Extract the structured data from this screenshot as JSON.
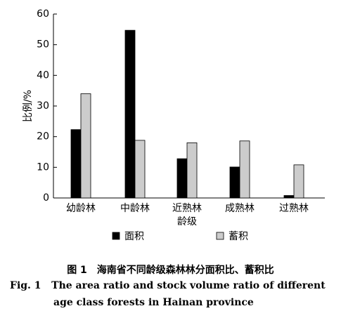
{
  "chart_data": {
    "type": "bar",
    "categories": [
      "幼龄林",
      "中龄林",
      "近熟林",
      "成熟林",
      "过熟林"
    ],
    "series": [
      {
        "name": "面积",
        "color": "#000000",
        "values": [
          22.3,
          54.7,
          12.8,
          10.1,
          0.8
        ]
      },
      {
        "name": "蓄积",
        "color": "#cccccc",
        "values": [
          34,
          18.8,
          18,
          18.6,
          10.8
        ]
      }
    ],
    "x_label": "龄级",
    "y_label": "比例/%",
    "ylim": [
      0,
      60
    ],
    "yticks": [
      0,
      10,
      20,
      30,
      40,
      50,
      60
    ],
    "grid": false
  },
  "caption": {
    "cn": "图 1　海南省不同龄级森林林分面积比、蓄积比",
    "en": [
      "Fig. 1   The area ratio and stock volume ratio of different",
      "age class forests in Hainan province"
    ]
  }
}
